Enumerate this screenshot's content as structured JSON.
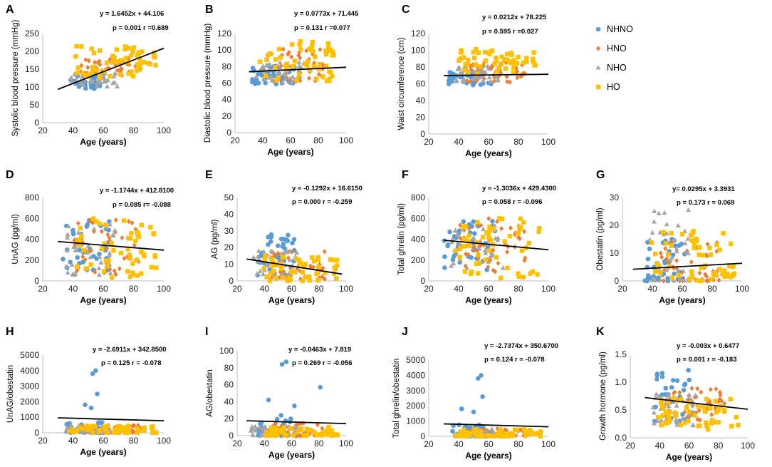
{
  "legend": [
    {
      "name": "NHNO",
      "color": "#5b9bd5",
      "marker": "circle"
    },
    {
      "name": "HNO",
      "color": "#ed7d31",
      "marker": "diamond"
    },
    {
      "name": "NHO",
      "color": "#a5a5a5",
      "marker": "triangle"
    },
    {
      "name": "HO",
      "color": "#ffc000",
      "marker": "square"
    }
  ],
  "chart_data": [
    {
      "id": "A",
      "type": "scatter",
      "xlabel": "Age (years)",
      "ylabel": "Systolic blood pressure (mmHg)",
      "xlim": [
        20,
        100
      ],
      "xticks": [
        "20",
        "40",
        "60",
        "80",
        "100"
      ],
      "ylim": [
        0,
        250
      ],
      "yticks": [
        "0",
        "50",
        "100",
        "150",
        "200",
        "250"
      ],
      "equation": "y = 1.6452x + 44.106",
      "stats": "p = 0.001 r =0.689",
      "trend": {
        "slope": 1.6452,
        "intercept": 44.106,
        "x": [
          30,
          100
        ]
      },
      "clusters": {
        "NHNO": {
          "x": [
            38,
            62
          ],
          "y": [
            95,
            140
          ]
        },
        "HNO": {
          "x": [
            45,
            85
          ],
          "y": [
            125,
            180
          ]
        },
        "NHO": {
          "x": [
            38,
            70
          ],
          "y": [
            100,
            140
          ]
        },
        "HO": {
          "x": [
            40,
            95
          ],
          "y": [
            125,
            215
          ]
        }
      }
    },
    {
      "id": "B",
      "type": "scatter",
      "xlabel": "Age (years)",
      "ylabel": "Diastolic blood pressure (mmHg)",
      "xlim": [
        20,
        100
      ],
      "xticks": [
        "20",
        "40",
        "60",
        "80",
        "100"
      ],
      "ylim": [
        0,
        120
      ],
      "yticks": [
        "0",
        "20",
        "40",
        "60",
        "80",
        "100",
        "120"
      ],
      "equation": "y = 0.0773x + 71.445",
      "stats": "p = 0.131 r =0.077",
      "trend": {
        "slope": 0.0773,
        "intercept": 71.445,
        "x": [
          30,
          100
        ]
      },
      "clusters": {
        "NHNO": {
          "x": [
            32,
            65
          ],
          "y": [
            58,
            82
          ]
        },
        "HNO": {
          "x": [
            40,
            85
          ],
          "y": [
            62,
            102
          ]
        },
        "NHO": {
          "x": [
            35,
            70
          ],
          "y": [
            60,
            85
          ]
        },
        "HO": {
          "x": [
            38,
            92
          ],
          "y": [
            62,
            112
          ]
        }
      }
    },
    {
      "id": "C",
      "type": "scatter",
      "xlabel": "Age (years)",
      "ylabel": "Waist circumference (cm)",
      "xlim": [
        20,
        100
      ],
      "xticks": [
        "20",
        "40",
        "60",
        "80",
        "100"
      ],
      "ylim": [
        0,
        120
      ],
      "yticks": [
        "0",
        "20",
        "40",
        "60",
        "80",
        "100",
        "120"
      ],
      "equation": "y = 0.0212x + 78.225",
      "stats": "p = 0.595 r =0.027",
      "trend": {
        "slope": 0.0212,
        "intercept": 78.225,
        "x": [
          30,
          100
        ],
        "display_offset": -9
      },
      "clusters": {
        "NHNO": {
          "x": [
            33,
            65
          ],
          "y": [
            58,
            75
          ]
        },
        "HNO": {
          "x": [
            45,
            85
          ],
          "y": [
            62,
            88
          ]
        },
        "NHO": {
          "x": [
            38,
            68
          ],
          "y": [
            62,
            82
          ]
        },
        "HO": {
          "x": [
            40,
            95
          ],
          "y": [
            72,
            102
          ]
        }
      }
    },
    {
      "id": "D",
      "type": "scatter",
      "xlabel": "Age (years)",
      "ylabel": "UnAG (pg/ml)",
      "xlim": [
        20,
        100
      ],
      "xticks": [
        "20",
        "40",
        "60",
        "80",
        "100"
      ],
      "ylim": [
        0,
        800
      ],
      "yticks": [
        "0",
        "200",
        "400",
        "600",
        "800"
      ],
      "equation": "y = -1.1744x + 412.8100",
      "stats": "p = 0.085 r= -0.088",
      "trend": {
        "slope": -1.1744,
        "intercept": 412.81,
        "x": [
          30,
          100
        ]
      },
      "clusters": {
        "NHNO": {
          "x": [
            30,
            65
          ],
          "y": [
            60,
            600
          ]
        },
        "HNO": {
          "x": [
            40,
            85
          ],
          "y": [
            60,
            600
          ]
        },
        "NHO": {
          "x": [
            35,
            70
          ],
          "y": [
            50,
            550
          ]
        },
        "HO": {
          "x": [
            38,
            95
          ],
          "y": [
            30,
            600
          ]
        }
      }
    },
    {
      "id": "E",
      "type": "scatter",
      "xlabel": "Age (years)",
      "ylabel": "AG (pg/ml)",
      "xlim": [
        20,
        100
      ],
      "xticks": [
        "20",
        "40",
        "60",
        "80",
        "100"
      ],
      "ylim": [
        0,
        50
      ],
      "yticks": [
        "0",
        "10",
        "20",
        "30",
        "40",
        "50"
      ],
      "equation": "y = -0.1292x + 16.6150",
      "stats": "p = 0.000 r = -0.259",
      "trend": {
        "slope": -0.1292,
        "intercept": 16.615,
        "x": [
          27,
          97
        ]
      },
      "clusters": {
        "NHNO": {
          "x": [
            35,
            62
          ],
          "y": [
            3,
            30
          ]
        },
        "HNO": {
          "x": [
            40,
            85
          ],
          "y": [
            1,
            20
          ]
        },
        "NHO": {
          "x": [
            30,
            65
          ],
          "y": [
            2,
            18
          ]
        },
        "HO": {
          "x": [
            38,
            95
          ],
          "y": [
            0,
            15
          ]
        }
      }
    },
    {
      "id": "F",
      "type": "scatter",
      "xlabel": "Age (years)",
      "ylabel": "Total ghrelin (pg/ml)",
      "xlim": [
        20,
        100
      ],
      "xticks": [
        "20",
        "40",
        "60",
        "80",
        "100"
      ],
      "ylim": [
        0,
        800
      ],
      "yticks": [
        "0",
        "200",
        "400",
        "600",
        "800"
      ],
      "equation": "y = -1.3036x + 429.4300",
      "stats": "p = 0.058  r = -0.096",
      "trend": {
        "slope": -1.3036,
        "intercept": 429.43,
        "x": [
          30,
          100
        ]
      },
      "clusters": {
        "NHNO": {
          "x": [
            30,
            65
          ],
          "y": [
            80,
            600
          ]
        },
        "HNO": {
          "x": [
            40,
            85
          ],
          "y": [
            80,
            600
          ]
        },
        "NHO": {
          "x": [
            35,
            70
          ],
          "y": [
            80,
            550
          ]
        },
        "HO": {
          "x": [
            38,
            95
          ],
          "y": [
            20,
            600
          ]
        }
      }
    },
    {
      "id": "G",
      "type": "scatter",
      "xlabel": "Age (years)",
      "ylabel": "Obestatin (pg/ml)",
      "xlim": [
        20,
        100
      ],
      "xticks": [
        "20",
        "40",
        "60",
        "80",
        "100"
      ],
      "ylim": [
        0,
        30
      ],
      "yticks": [
        "0",
        "10",
        "20",
        "30"
      ],
      "equation": "y= 0.0295x + 3.3931",
      "stats": "p = 0.173 r = 0.069",
      "trend": {
        "slope": 0.0295,
        "intercept": 3.3931,
        "x": [
          27,
          100
        ]
      },
      "clusters": {
        "NHNO": {
          "x": [
            35,
            62
          ],
          "y": [
            0,
            15
          ]
        },
        "HNO": {
          "x": [
            45,
            85
          ],
          "y": [
            0,
            15
          ]
        },
        "NHO": {
          "x": [
            38,
            65
          ],
          "y": [
            0,
            26
          ]
        },
        "HO": {
          "x": [
            38,
            95
          ],
          "y": [
            0,
            18
          ]
        }
      }
    },
    {
      "id": "H",
      "type": "scatter",
      "xlabel": "Age (years)",
      "ylabel": "UnAG/obestatin",
      "xlim": [
        20,
        100
      ],
      "xticks": [
        "20",
        "40",
        "60",
        "80",
        "100"
      ],
      "ylim": [
        0,
        5000
      ],
      "yticks": [
        "0",
        "1000",
        "2000",
        "3000",
        "4000",
        "5000"
      ],
      "equation": "y = -2.6911x + 342.8500",
      "stats": "p = 0.125 r = -0.078",
      "trend": {
        "slope": -2.6911,
        "intercept": 342.85,
        "x": [
          30,
          100
        ],
        "display_offset": 700
      },
      "clusters": {
        "NHNO": {
          "x": [
            35,
            62
          ],
          "y": [
            0,
            800
          ]
        },
        "HNO": {
          "x": [
            45,
            85
          ],
          "y": [
            0,
            500
          ]
        },
        "NHO": {
          "x": [
            35,
            65
          ],
          "y": [
            0,
            500
          ]
        },
        "HO": {
          "x": [
            38,
            95
          ],
          "y": [
            0,
            450
          ]
        }
      },
      "outliers": [
        {
          "x": 55,
          "y": 4000
        },
        {
          "x": 53,
          "y": 3800
        },
        {
          "x": 56,
          "y": 2500
        },
        {
          "x": 48,
          "y": 1800
        },
        {
          "x": 52,
          "y": 1600
        }
      ]
    },
    {
      "id": "I",
      "type": "scatter",
      "xlabel": "Age (years)",
      "ylabel": "AG/obestatin",
      "xlim": [
        20,
        100
      ],
      "xticks": [
        "20",
        "40",
        "60",
        "80",
        "100"
      ],
      "ylim": [
        0,
        100
      ],
      "yticks": [
        "0",
        "20",
        "40",
        "60",
        "80",
        "100"
      ],
      "equation": "y = -0.0463x + 7.819",
      "stats": "p = 0.269 r = -0.056",
      "trend": {
        "slope": -0.0463,
        "intercept": 7.819,
        "x": [
          27,
          100
        ],
        "display_offset": 11
      },
      "clusters": {
        "NHNO": {
          "x": [
            35,
            65
          ],
          "y": [
            0,
            25
          ]
        },
        "HNO": {
          "x": [
            40,
            85
          ],
          "y": [
            0,
            15
          ]
        },
        "NHO": {
          "x": [
            30,
            65
          ],
          "y": [
            0,
            12
          ]
        },
        "HO": {
          "x": [
            38,
            95
          ],
          "y": [
            0,
            10
          ]
        }
      },
      "outliers": [
        {
          "x": 56,
          "y": 87
        },
        {
          "x": 53,
          "y": 84
        },
        {
          "x": 81,
          "y": 57
        },
        {
          "x": 43,
          "y": 42
        },
        {
          "x": 62,
          "y": 35
        }
      ]
    },
    {
      "id": "J",
      "type": "scatter",
      "xlabel": "Age (years)",
      "ylabel": "Total ghrelin/obestatin",
      "xlim": [
        20,
        100
      ],
      "xticks": [
        "20",
        "40",
        "60",
        "80",
        "100"
      ],
      "ylim": [
        0,
        5000
      ],
      "yticks": [
        "0",
        "1000",
        "2000",
        "3000",
        "4000",
        "5000"
      ],
      "equation": "y = -2.7374x + 350.6700",
      "stats": "p = 0.124 r = -0.078",
      "trend": {
        "slope": -2.7374,
        "intercept": 350.67,
        "x": [
          30,
          100
        ],
        "display_offset": 550
      },
      "clusters": {
        "NHNO": {
          "x": [
            35,
            62
          ],
          "y": [
            0,
            800
          ]
        },
        "HNO": {
          "x": [
            45,
            85
          ],
          "y": [
            0,
            500
          ]
        },
        "NHO": {
          "x": [
            35,
            65
          ],
          "y": [
            0,
            500
          ]
        },
        "HO": {
          "x": [
            38,
            95
          ],
          "y": [
            0,
            450
          ]
        }
      },
      "outliers": [
        {
          "x": 55,
          "y": 4000
        },
        {
          "x": 53,
          "y": 3800
        },
        {
          "x": 56,
          "y": 2600
        },
        {
          "x": 42,
          "y": 1800
        },
        {
          "x": 50,
          "y": 1600
        }
      ]
    },
    {
      "id": "K",
      "type": "scatter",
      "xlabel": "Age (years)",
      "ylabel": "Growth hormone (pg/ml)",
      "xlim": [
        20,
        100
      ],
      "xticks": [
        "20",
        "40",
        "60",
        "80",
        "100"
      ],
      "ylim": [
        0,
        1.5
      ],
      "yticks": [
        "0.0",
        "0.5",
        "1.0",
        "1.5"
      ],
      "equation": "y = -0.003x + 0.6477",
      "stats": "p = 0.001  r = -0.183",
      "trend": {
        "slope": -0.003,
        "intercept": 0.6477,
        "x": [
          30,
          100
        ],
        "display_offset": 0.165
      },
      "clusters": {
        "NHNO": {
          "x": [
            35,
            62
          ],
          "y": [
            0.25,
            1.22
          ]
        },
        "HNO": {
          "x": [
            45,
            85
          ],
          "y": [
            0.3,
            0.9
          ]
        },
        "NHO": {
          "x": [
            35,
            65
          ],
          "y": [
            0.2,
            0.8
          ]
        },
        "HO": {
          "x": [
            38,
            95
          ],
          "y": [
            0.15,
            0.75
          ]
        }
      }
    }
  ]
}
